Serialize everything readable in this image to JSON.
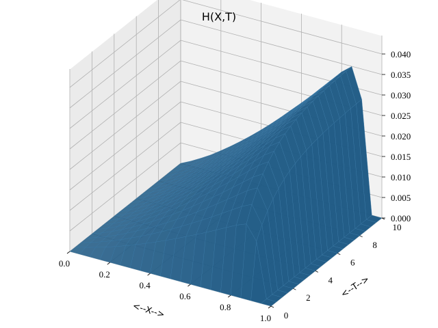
{
  "chart_data": {
    "type": "surface",
    "title": "H(X,T)",
    "xlabel": "<--X-->",
    "ylabel": "<--T-->",
    "zlabel": "",
    "xlim": [
      0,
      1
    ],
    "ylim": [
      0,
      10
    ],
    "zlim": [
      0,
      0.04
    ],
    "x_ticks": [
      "0.0",
      "0.2",
      "0.4",
      "0.6",
      "0.8",
      "1.0"
    ],
    "y_ticks": [
      "0",
      "2",
      "4",
      "6",
      "8",
      "10"
    ],
    "z_ticks": [
      "0.000",
      "0.005",
      "0.010",
      "0.015",
      "0.020",
      "0.025",
      "0.030",
      "0.035",
      "0.040"
    ],
    "x_values": [
      0.05,
      0.1,
      0.15,
      0.2,
      0.25,
      0.3,
      0.35,
      0.4,
      0.45,
      0.5,
      0.55,
      0.6,
      0.65,
      0.7,
      0.75,
      0.8,
      0.85,
      0.9,
      0.95
    ],
    "t_values": [
      0,
      0.5,
      1,
      1.5,
      2,
      2.5,
      3,
      3.5,
      4,
      4.5,
      5,
      5.5,
      6,
      6.5,
      7,
      7.5,
      8,
      8.5,
      9,
      9.5,
      10
    ],
    "surface_description_values": {
      "H_at_t0": [
        0.0,
        0.0,
        0.0,
        0.0,
        0.0,
        0.0,
        0.0,
        0.0,
        0.0,
        0.0,
        0.0,
        0.0,
        0.0,
        0.0,
        0.0,
        0.0,
        0.0,
        0.0,
        0.0
      ],
      "H_peak_profile_t10": [
        0.0012,
        0.0026,
        0.0041,
        0.0058,
        0.0076,
        0.0095,
        0.0115,
        0.0136,
        0.0158,
        0.0181,
        0.0205,
        0.0229,
        0.0254,
        0.028,
        0.0306,
        0.0332,
        0.0352,
        0.0278,
        0.0
      ]
    },
    "surface_color": "#1f5a85",
    "pane_color": "#f2f2f2",
    "grid": true
  }
}
